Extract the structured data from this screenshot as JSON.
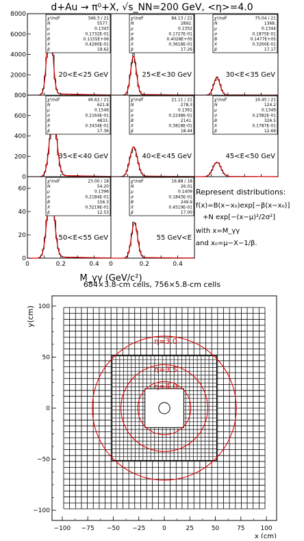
{
  "figure_title": "d+Au → π⁰+X, √s_NN=200 GeV, <η>=4.0",
  "chart_data": [
    {
      "type": "line",
      "title": "d+Au → π⁰+X, √s_NN=200 GeV, <η>=4.0",
      "xlabel": "M_γγ (GeV/c²)",
      "xlim": [
        0,
        0.5
      ],
      "x_ticks": [
        "0",
        "0.2",
        "0.4"
      ],
      "row_y_axes": [
        {
          "ylim": [
            0,
            8000
          ],
          "ticks": [
            "0",
            "2000",
            "4000",
            "6000",
            "8000"
          ]
        },
        {
          "ylim": [
            0,
            800
          ],
          "ticks": [
            "0",
            "200",
            "400",
            "600",
            "800"
          ]
        },
        {
          "ylim": [
            0,
            70
          ],
          "ticks": [
            "0",
            "20",
            "40",
            "60"
          ]
        }
      ],
      "fit_param_names": [
        "χ²/ndf",
        "N",
        "μ",
        "σ",
        "B",
        "X",
        "β"
      ],
      "panels": [
        {
          "label": "20<E<25 GeV",
          "chi2ndf": "346.3 / 21",
          "N": "5577.",
          "mu": "0.1343",
          "sigma": "0.1732E-01",
          "B": "0.1155E+06",
          "X": "0.4280E-01",
          "beta": "19.62",
          "peak": 7200
        },
        {
          "label": "25<E<30 GeV",
          "chi2ndf": "84.13 / 21",
          "N": "2892.",
          "mu": "0.1352",
          "sigma": "0.1727E-01",
          "B": "0.4028E+05",
          "X": "0.3618E-01",
          "beta": "17.26",
          "peak": 3800
        },
        {
          "label": "30<E<35 GeV",
          "chi2ndf": "75.04 / 21",
          "N": "1368.",
          "mu": "0.1344",
          "sigma": "0.1875E-01",
          "B": "0.1477E+05",
          "X": "0.3260E-01",
          "beta": "17.17",
          "peak": 1700
        },
        {
          "label": "35<E<40 GeV",
          "chi2ndf": "46.62 / 21",
          "N": "621.8",
          "mu": "0.1546",
          "sigma": "0.2164E-01",
          "B": "4833.",
          "X": "0.3434E-01",
          "beta": "17.36",
          "peak": 600
        },
        {
          "label": "40<E<45 GeV",
          "chi2ndf": "21.11 / 21",
          "N": "278.3",
          "mu": "0.1361",
          "sigma": "0.2248E-01",
          "B": "2141.",
          "X": "0.3818E-01",
          "beta": "18.44",
          "peak": 290
        },
        {
          "label": "45<E<50 GeV",
          "chi2ndf": "16.45 / 21",
          "N": "124.2",
          "mu": "0.1349",
          "sigma": "0.2382E-01",
          "B": "326.5",
          "X": "0.1787E-01",
          "beta": "12.69",
          "peak": 140
        },
        {
          "label": "50<E<55 GeV",
          "chi2ndf": "23.00 / 18",
          "N": "54.20",
          "mu": "0.1396",
          "sigma": "0.2184E-01",
          "B": "156.3",
          "X": "0.3219E-01",
          "beta": "12.53",
          "peak": 58
        },
        {
          "label": "55 GeV<E",
          "chi2ndf": "16.88 / 18",
          "N": "26.01",
          "mu": "0.1409",
          "sigma": "0.1843E-01",
          "B": "249.9",
          "X": "0.4519E-01",
          "beta": "17.00",
          "peak": 30
        }
      ],
      "annotation_lines": [
        "Represent distributions:",
        "f(x)=B(x−x₀)exp[−β(x−x₀)]",
        "+N exp[−(x−μ)²/2σ²]",
        "with x=M_γγ",
        "and x₀=μ−X−1/β."
      ]
    },
    {
      "type": "scatter",
      "title": "684×3.8-cm cells, 756×5.8-cm cells",
      "xlabel": "x (cm)",
      "ylabel": "y(cm)",
      "xlim": [
        -110,
        110
      ],
      "ylim": [
        -110,
        110
      ],
      "x_ticks": [
        "−100",
        "−75",
        "−50",
        "−25",
        "0",
        "25",
        "50",
        "75",
        "100"
      ],
      "y_ticks": [
        "−100",
        "−50",
        "0",
        "50",
        "100"
      ],
      "large_cell_size_cm": 5.8,
      "small_cell_size_cm": 3.8,
      "large_region_half_width_cm": 98.6,
      "small_region_half_width_cm": 51.3,
      "beam_hole_half_width_cm": 19,
      "center_circle_radius_cm": 5.5,
      "eta_circles": [
        {
          "label": "η=3.0",
          "radius_cm": 70.5
        },
        {
          "label": "η=3.5",
          "radius_cm": 42.5
        },
        {
          "label": "η=4.0",
          "radius_cm": 26
        }
      ]
    }
  ]
}
